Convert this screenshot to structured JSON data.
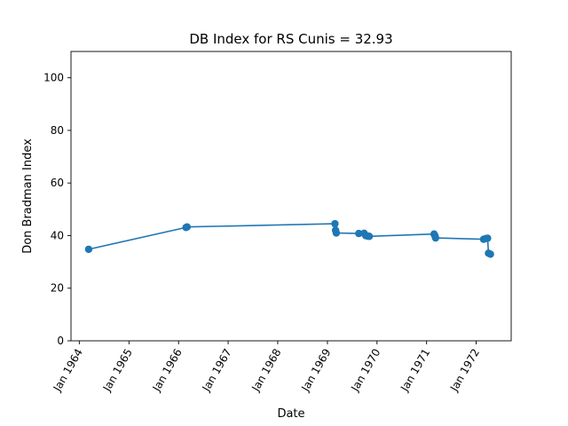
{
  "chart_data": {
    "type": "line",
    "title": "DB Index for RS Cunis = 32.93",
    "xlabel": "Date",
    "ylabel": "Don Bradman Index",
    "xlim": [
      "1963-11-01",
      "1972-09-15"
    ],
    "ylim": [
      0,
      110
    ],
    "x_ticks": [
      {
        "date": "1964-01-01",
        "label": "Jan 1964"
      },
      {
        "date": "1965-01-01",
        "label": "Jan 1965"
      },
      {
        "date": "1966-01-01",
        "label": "Jan 1966"
      },
      {
        "date": "1967-01-01",
        "label": "Jan 1967"
      },
      {
        "date": "1968-01-01",
        "label": "Jan 1968"
      },
      {
        "date": "1969-01-01",
        "label": "Jan 1969"
      },
      {
        "date": "1970-01-01",
        "label": "Jan 1970"
      },
      {
        "date": "1971-01-01",
        "label": "Jan 1971"
      },
      {
        "date": "1972-01-01",
        "label": "Jan 1972"
      }
    ],
    "y_ticks": [
      0,
      20,
      40,
      60,
      80,
      100
    ],
    "grid": false,
    "color": "#1f77b4",
    "series": [
      {
        "points": [
          {
            "x": "1964-03-10",
            "y": 34.8
          },
          {
            "x": "1966-02-25",
            "y": 43.1
          },
          {
            "x": "1966-03-05",
            "y": 43.3
          },
          {
            "x": "1969-02-25",
            "y": 44.5
          },
          {
            "x": "1969-03-02",
            "y": 42.0
          },
          {
            "x": "1969-03-07",
            "y": 41.0
          },
          {
            "x": "1969-08-20",
            "y": 40.8
          },
          {
            "x": "1969-09-28",
            "y": 40.9
          },
          {
            "x": "1969-10-10",
            "y": 40.0
          },
          {
            "x": "1969-10-25",
            "y": 39.8
          },
          {
            "x": "1969-11-05",
            "y": 39.7
          },
          {
            "x": "1971-02-25",
            "y": 40.6
          },
          {
            "x": "1971-03-03",
            "y": 40.0
          },
          {
            "x": "1971-03-08",
            "y": 39.1
          },
          {
            "x": "1972-02-25",
            "y": 38.6
          },
          {
            "x": "1972-03-15",
            "y": 38.9
          },
          {
            "x": "1972-03-25",
            "y": 39.0
          },
          {
            "x": "1972-04-01",
            "y": 33.3
          },
          {
            "x": "1972-04-15",
            "y": 32.93
          }
        ]
      }
    ]
  }
}
